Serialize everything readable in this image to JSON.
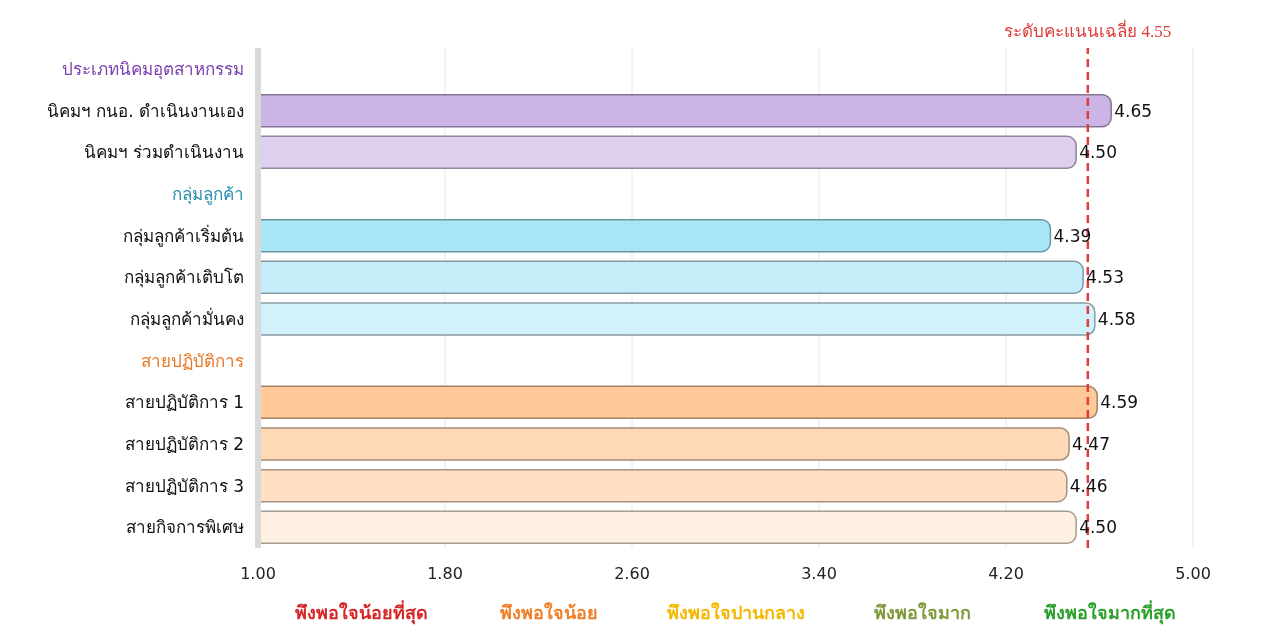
{
  "chart_data": {
    "type": "bar",
    "orientation": "horizontal",
    "categories": [
      "ประเภทนิคมอุตสาหกรรม",
      "นิคมฯ กนอ. ดำเนินงานเอง",
      "นิคมฯ ร่วมดำเนินงาน",
      "กลุ่มลูกค้า",
      "กลุ่มลูกค้าเริ่มต้น",
      "กลุ่มลูกค้าเติบโต",
      "กลุ่มลูกค้ามั่นคง",
      "สายปฏิบัติการ",
      "สายปฏิบัติการ 1",
      "สายปฏิบัติการ 2",
      "สายปฏิบัติการ 3",
      "สายกิจการพิเศษ"
    ],
    "values": [
      null,
      4.65,
      4.5,
      null,
      4.39,
      4.53,
      4.58,
      null,
      4.59,
      4.47,
      4.46,
      4.5
    ],
    "value_labels": [
      null,
      "4.65",
      "4.50",
      null,
      "4.39",
      "4.53",
      "4.58",
      null,
      "4.59",
      "4.47",
      "4.46",
      "4.50"
    ],
    "colors": [
      "#7b3fb0",
      "#cdb4e6",
      "#ddd0ee",
      "#2a8fb0",
      "#a8e6f7",
      "#c4eefa",
      "#d2f2fb",
      "#e8782a",
      "#ffc999",
      "#ffd9b5",
      "#ffe0c4",
      "#fff0e2"
    ],
    "xlim": [
      1,
      5
    ],
    "xticks": [
      {
        "value": 1,
        "label": "1.00"
      },
      {
        "value": 1.8,
        "label": "1.80"
      },
      {
        "value": 2.6,
        "label": "2.60"
      },
      {
        "value": 3.4,
        "label": "3.40"
      },
      {
        "value": 4.2,
        "label": "4.20"
      },
      {
        "value": 5,
        "label": "5.00"
      }
    ],
    "grid": "x",
    "ref_lines": [
      {
        "axis": "x",
        "value": 4.55,
        "label": "ระดับคะแนนเฉลี่ย 4.55",
        "color": "#e03c3c",
        "line_style": "dashed"
      }
    ],
    "annotations": [
      "พึงพอใจน้อยที่สุด",
      "พึงพอใจน้อย",
      "พึงพอใจปานกลาง",
      "พึงพอใจมาก",
      "พึงพอใจมากที่สุด"
    ]
  }
}
